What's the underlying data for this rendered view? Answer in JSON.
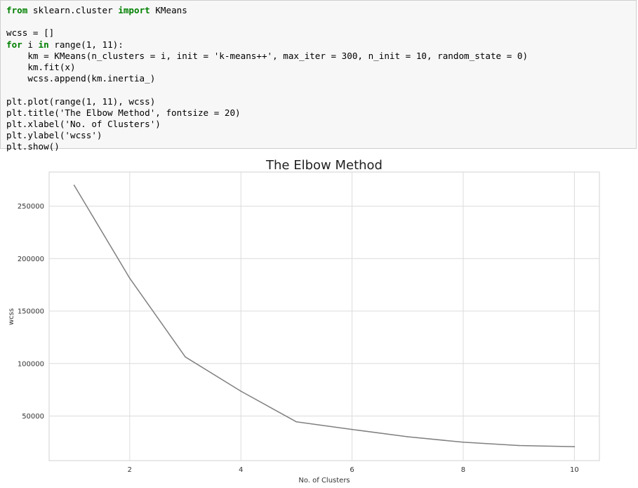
{
  "code_cell": {
    "lines": [
      "from sklearn.cluster import KMeans",
      "",
      "wcss = []",
      "for i in range(1, 11):",
      "    km = KMeans(n_clusters = i, init = 'k-means++', max_iter = 300, n_init = 10, random_state = 0)",
      "    km.fit(x)",
      "    wcss.append(km.inertia_)",
      "",
      "plt.plot(range(1, 11), wcss)",
      "plt.title('The Elbow Method', fontsize = 20)",
      "plt.xlabel('No. of Clusters')",
      "plt.ylabel('wcss')",
      "plt.show()"
    ],
    "keywords": [
      "from",
      "import",
      "for",
      "in"
    ],
    "keyword_color": "#008000",
    "background": "#f7f7f7"
  },
  "chart_data": {
    "type": "line",
    "title": "The Elbow Method",
    "xlabel": "No. of Clusters",
    "ylabel": "wcss",
    "x": [
      1,
      2,
      3,
      4,
      5,
      6,
      7,
      8,
      9,
      10
    ],
    "series": [
      {
        "values": [
          269981,
          181363,
          106348,
          73679,
          44448,
          37233,
          30241,
          25036,
          21917,
          20820
        ],
        "color": "#808080"
      }
    ],
    "xlim": [
      0.55,
      10.45
    ],
    "ylim": [
      7500,
      282500
    ],
    "xticks": [
      2,
      4,
      6,
      8,
      10
    ],
    "yticks": [
      50000,
      100000,
      150000,
      200000,
      250000
    ],
    "grid": true,
    "legend": "none"
  }
}
